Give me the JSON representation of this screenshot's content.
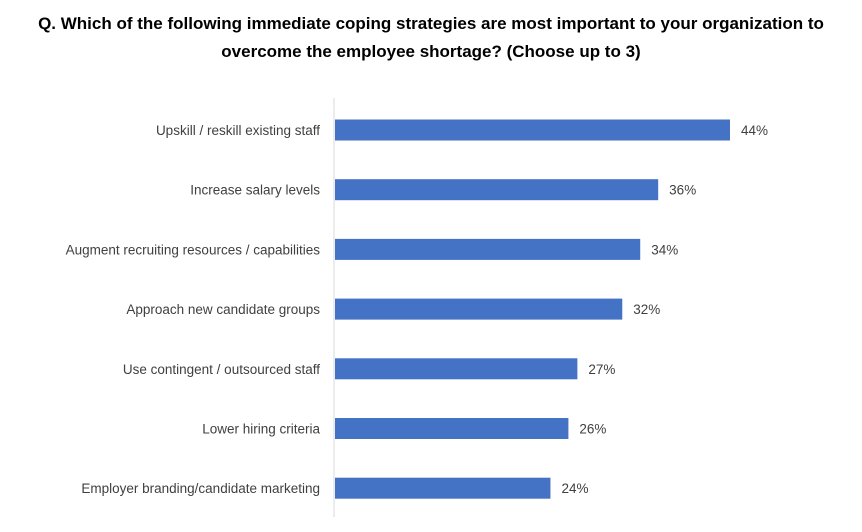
{
  "chart_data": {
    "type": "bar",
    "orientation": "horizontal",
    "title_lines": [
      "Q. Which of the following immediate coping strategies are most important to your organization to",
      "overcome the employee shortage? (Choose up to 3)"
    ],
    "categories": [
      "Upskill / reskill existing staff",
      "Increase salary levels",
      "Augment recruiting resources / capabilities",
      "Approach new candidate groups",
      "Use contingent / outsourced staff",
      "Lower hiring criteria",
      "Employer branding/candidate marketing"
    ],
    "values": [
      44,
      36,
      34,
      32,
      27,
      26,
      24
    ],
    "data_labels": [
      "44%",
      "36%",
      "34%",
      "32%",
      "27%",
      "26%",
      "24%"
    ],
    "xlim": [
      0,
      50
    ],
    "grid": false,
    "legend": "none",
    "bar_color": "#4472C4"
  }
}
